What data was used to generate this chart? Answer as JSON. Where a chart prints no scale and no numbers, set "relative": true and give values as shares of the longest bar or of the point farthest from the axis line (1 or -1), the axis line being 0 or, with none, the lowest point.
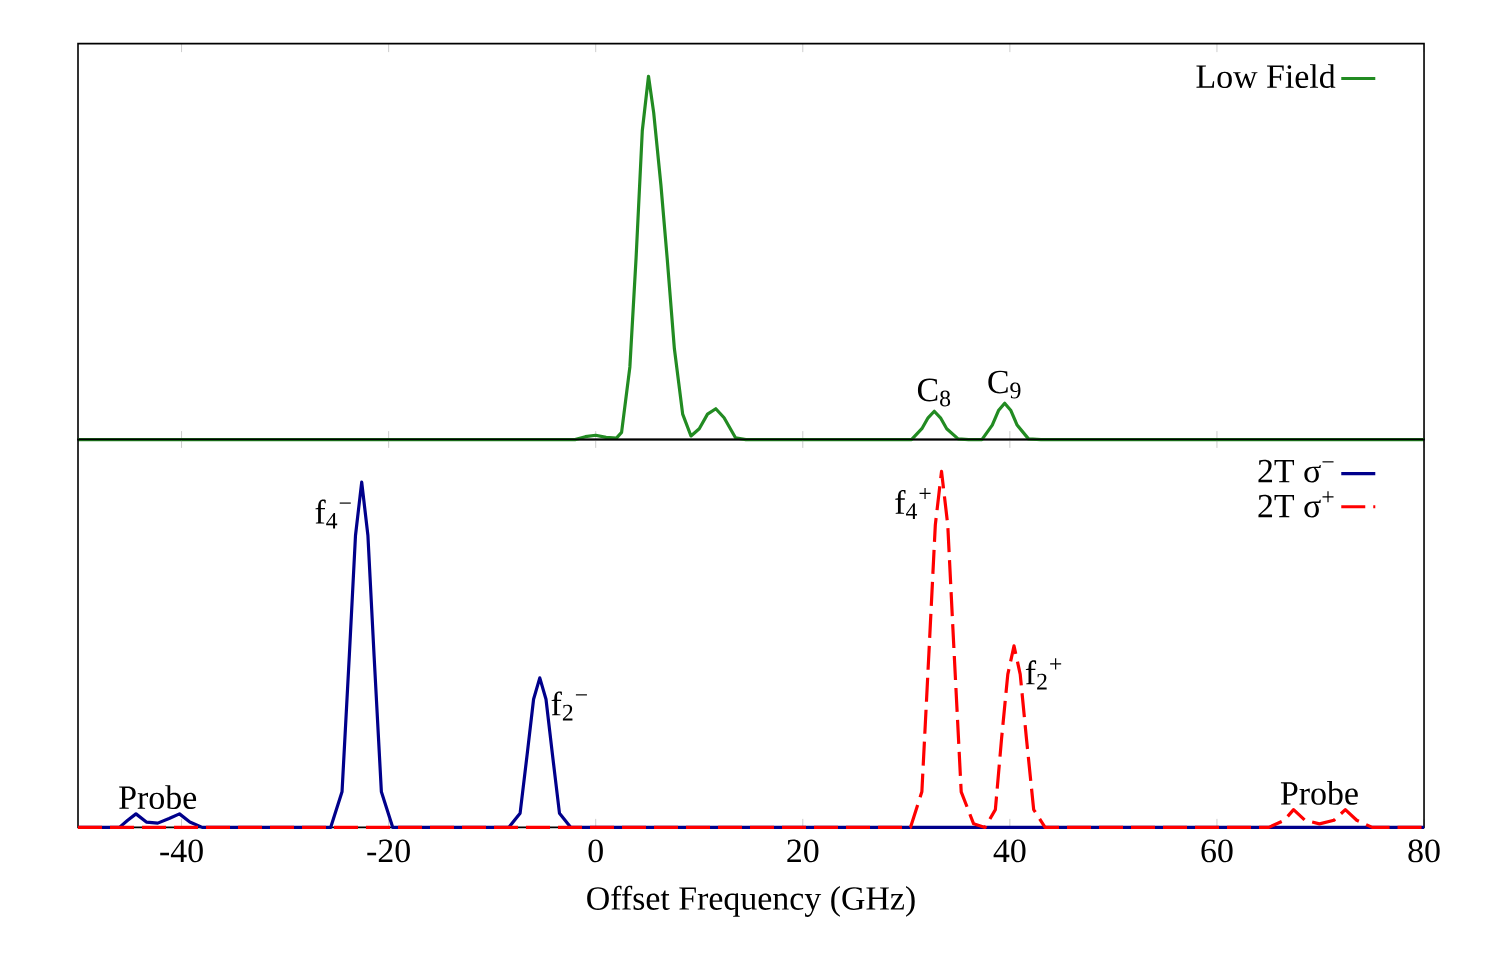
{
  "chart_data": [
    {
      "type": "line",
      "relative": true,
      "xlim": [
        -50,
        80
      ],
      "xticks": [
        -40,
        -20,
        0,
        20,
        40,
        60,
        80
      ],
      "tick_labels": false,
      "legend": "top right",
      "marker": "none",
      "series": [
        {
          "name": "Low Field",
          "color": "#228b22",
          "line_style": "solid",
          "x": [
            -50,
            -2,
            -1,
            0,
            1,
            2,
            2.5,
            3.3,
            3.9,
            4.5,
            5.1,
            5.6,
            6.3,
            6.9,
            7.6,
            8.4,
            9.2,
            10,
            10.8,
            11.6,
            12.4,
            13.5,
            14.5,
            30.5,
            31.5,
            32.1,
            32.7,
            33.3,
            33.9,
            35,
            36,
            37.3,
            38.3,
            38.9,
            39.5,
            40.1,
            40.7,
            41.8,
            43,
            80
          ],
          "values": [
            0,
            0,
            0.008,
            0.012,
            0.006,
            0.004,
            0.02,
            0.2,
            0.5,
            0.85,
            1,
            0.9,
            0.7,
            0.5,
            0.25,
            0.07,
            0.01,
            0.03,
            0.07,
            0.085,
            0.06,
            0.005,
            0,
            0,
            0.03,
            0.06,
            0.078,
            0.06,
            0.03,
            0.002,
            0,
            0,
            0.04,
            0.08,
            0.1,
            0.08,
            0.04,
            0.002,
            0,
            0
          ]
        }
      ],
      "annotations": [
        {
          "text": "C$_{8}$",
          "x": 32.7,
          "y": 0.078
        },
        {
          "text": "C$_{9}$",
          "x": 39.5,
          "y": 0.1
        }
      ]
    },
    {
      "type": "line",
      "relative": true,
      "xlim": [
        -50,
        80
      ],
      "xticks": [
        -40,
        -20,
        0,
        20,
        40,
        60,
        80
      ],
      "tick_labels": "x",
      "legend": "top right",
      "marker": "none",
      "xlabel": "Offset Frequency (GHz)",
      "series": [
        {
          "name": "2T σ$^{−}$",
          "color": "#00008b",
          "line_style": "solid",
          "x": [
            -50,
            -46,
            -45.2,
            -44.4,
            -43.4,
            -42.3,
            -41.2,
            -40.2,
            -39.2,
            -38,
            -25.6,
            -24.5,
            -23.8,
            -23.2,
            -22.6,
            -22,
            -21.4,
            -20.7,
            -19.6,
            -8.4,
            -7.3,
            -6.6,
            -6,
            -5.4,
            -4.8,
            -4.2,
            -3.5,
            -2.4,
            80
          ],
          "values": [
            0,
            0,
            0.02,
            0.038,
            0.015,
            0.012,
            0.025,
            0.038,
            0.015,
            0,
            0,
            0.1,
            0.48,
            0.82,
            0.97,
            0.82,
            0.48,
            0.1,
            0,
            0,
            0.04,
            0.21,
            0.36,
            0.42,
            0.36,
            0.21,
            0.04,
            0,
            0
          ]
        },
        {
          "name": "2T σ$^{+}$",
          "color": "#ff0000",
          "line_style": "dashed",
          "x": [
            -50,
            30.4,
            31.5,
            32.2,
            32.8,
            33.4,
            34,
            34.6,
            35.3,
            36.5,
            37.6,
            38.6,
            39.2,
            39.8,
            40.4,
            41,
            41.6,
            42.3,
            43.4,
            65,
            66.5,
            67.4,
            68.5,
            69.9,
            71.3,
            72.4,
            73.5,
            75,
            80
          ],
          "values": [
            0,
            0,
            0.1,
            0.5,
            0.85,
            1,
            0.85,
            0.5,
            0.1,
            0.01,
            0,
            0.05,
            0.25,
            0.43,
            0.51,
            0.43,
            0.25,
            0.05,
            0,
            0,
            0.02,
            0.05,
            0.02,
            0.01,
            0.02,
            0.05,
            0.02,
            0,
            0
          ]
        }
      ],
      "annotations": [
        {
          "text": "f$_{4}$$^{−}$",
          "x": -22.6,
          "y": 0.97
        },
        {
          "text": "f$_{2}$$^{−}$",
          "x": -5.4,
          "y": 0.42
        },
        {
          "text": "f$_{4}$$^{+}$",
          "x": 33.4,
          "y": 1
        },
        {
          "text": "f$_{2}$$^{+}$",
          "x": 40.4,
          "y": 0.51
        },
        {
          "text": "Probe",
          "x": -42.3,
          "y": 0.012
        },
        {
          "text": "Probe",
          "x": 69.9,
          "y": 0.01
        }
      ]
    }
  ]
}
